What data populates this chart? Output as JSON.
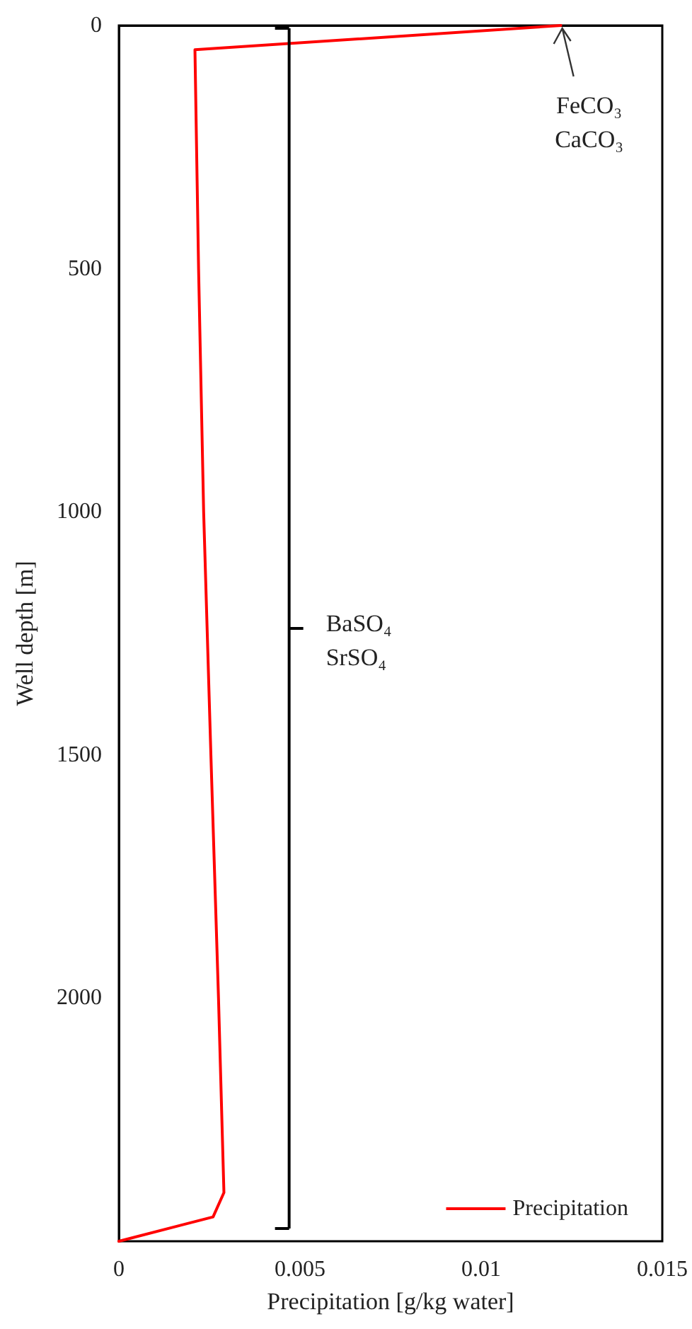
{
  "chart_data": {
    "type": "line",
    "xlabel": "Precipitation [g/kg water]",
    "ylabel": "Well depth [m]",
    "series": [
      {
        "name": "Precipitation",
        "color": "#ff0000",
        "x": [
          0.0122,
          0.0021,
          0.0022,
          0.00234,
          0.00254,
          0.00275,
          0.0029,
          0.0026,
          0
        ],
        "values": [
          0,
          50,
          500,
          1000,
          1500,
          2000,
          2400,
          2450,
          2500
        ]
      }
    ],
    "xlim": [
      0,
      0.015
    ],
    "xticks": [
      0,
      0.005,
      0.01,
      0.015
    ],
    "ylim": [
      2500,
      0
    ],
    "yticks": [
      0,
      500,
      1000,
      1500,
      2000
    ],
    "grid": false,
    "legend": "bottom right",
    "line_style": "solid",
    "annotations": [
      {
        "text": "FeCO₃\nCaCO₃",
        "x": 0.0122,
        "y": 0
      }
    ],
    "ref_lines": [
      {
        "axis": "x",
        "value": 0.0047,
        "label": "BaSO₄\nSrSO₄",
        "color": "#000000"
      }
    ]
  }
}
